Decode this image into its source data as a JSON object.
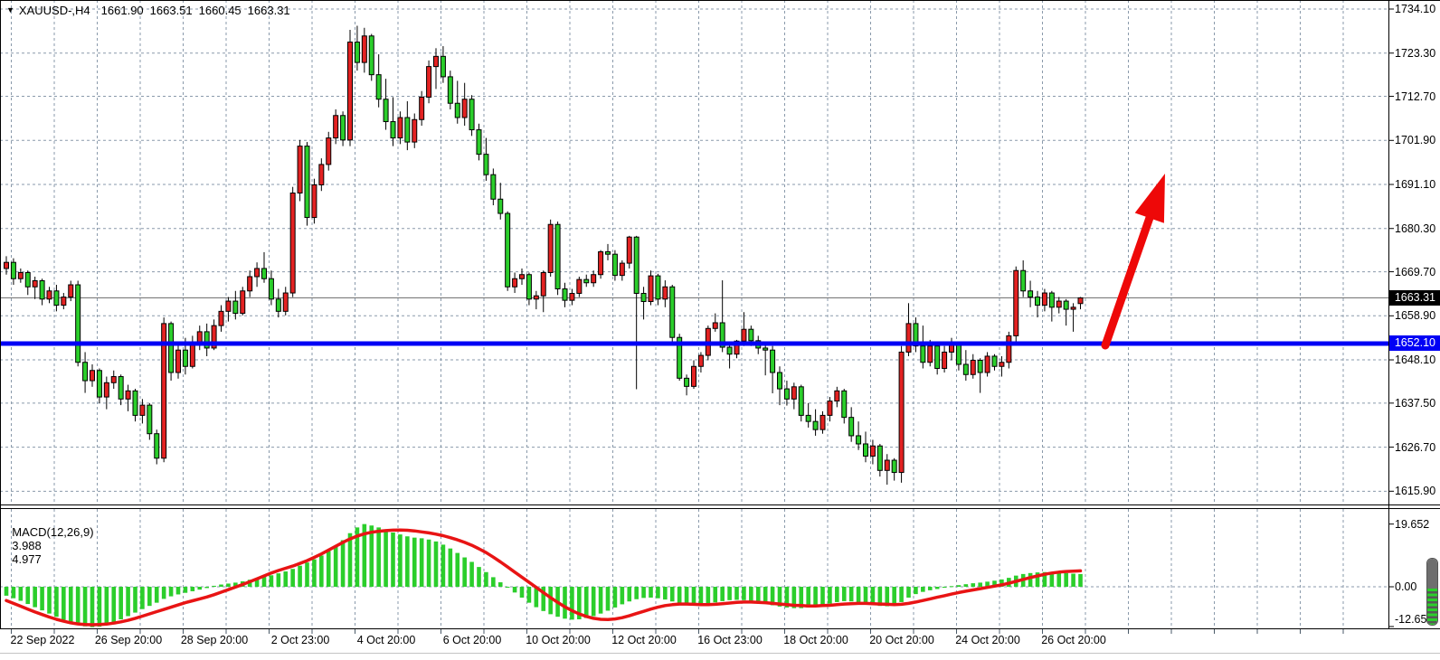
{
  "header": {
    "dropdown_icon": "▼",
    "symbol_timeframe": "XAUUSD-,H4",
    "open": "1661.90",
    "high": "1663.51",
    "low": "1660.45",
    "close": "1663.31"
  },
  "macd_panel": {
    "label": "MACD(12,26,9)",
    "macd_value": "3.988",
    "signal_value": "4.977"
  },
  "price_axis": {
    "tick_labels": [
      "1734.10",
      "1723.30",
      "1712.70",
      "1701.90",
      "1691.10",
      "1680.30",
      "1669.70",
      "1658.90",
      "1648.10",
      "1637.50",
      "1626.70",
      "1615.90"
    ],
    "tick_values": [
      1734.1,
      1723.3,
      1712.7,
      1701.9,
      1691.1,
      1680.3,
      1669.7,
      1658.9,
      1648.1,
      1637.5,
      1626.7,
      1615.9
    ],
    "current_price_tag": "1663.31",
    "level_price_tag": "1652.10"
  },
  "macd_axis": {
    "tick_labels": [
      "19.652",
      "0.00",
      "-12.653"
    ],
    "tick_values": [
      19.652,
      0.0,
      -12.653
    ]
  },
  "time_axis": {
    "labels": [
      "22 Sep 2022",
      "26 Sep 20:00",
      "28 Sep 20:00",
      "2 Oct 23:00",
      "4 Oct 20:00",
      "6 Oct 20:00",
      "10 Oct 20:00",
      "12 Oct 20:00",
      "16 Oct 23:00",
      "18 Oct 20:00",
      "20 Oct 20:00",
      "24 Oct 20:00",
      "26 Oct 20:00"
    ]
  },
  "colors": {
    "background": "#ffffff",
    "grid": "#8a9aab",
    "bull_body": "#e32222",
    "bear_body": "#2bce2b",
    "wick": "#000000",
    "border": "#000000",
    "support_line": "#0000f5",
    "current_price_line": "#6a6a6a",
    "macd_histogram": "#2bce2b",
    "macd_signal": "#e81414",
    "arrow": "#ee0808",
    "tag_current_bg": "#000000",
    "tag_level_bg": "#0000f5",
    "tag_text": "#ffffff"
  },
  "chart_data": {
    "type": "candlestick",
    "symbol": "XAUUSD-",
    "timeframe": "H4",
    "title": "XAUUSD-,H4",
    "last_ohlc": {
      "open": 1661.9,
      "high": 1663.51,
      "low": 1660.45,
      "close": 1663.31
    },
    "ylim": [
      1615.9,
      1734.1
    ],
    "y_ticks": [
      1734.1,
      1723.3,
      1712.7,
      1701.9,
      1691.1,
      1680.3,
      1669.7,
      1658.9,
      1648.1,
      1637.5,
      1626.7,
      1615.9
    ],
    "x_tick_labels": [
      "22 Sep 2022",
      "26 Sep 20:00",
      "28 Sep 20:00",
      "2 Oct 23:00",
      "4 Oct 20:00",
      "6 Oct 20:00",
      "10 Oct 20:00",
      "12 Oct 20:00",
      "16 Oct 23:00",
      "18 Oct 20:00",
      "20 Oct 20:00",
      "24 Oct 20:00",
      "26 Oct 20:00"
    ],
    "grid": true,
    "note_bull_bear_colors": "bullish candles are red, bearish candles are lime in this template",
    "support_line_price": 1652.1,
    "current_price": 1663.31,
    "annotation_arrow": {
      "from_price": 1652.1,
      "to_price": 1694.0,
      "meaning": "projected breakout up from 1652.10 support"
    },
    "candles": [
      [
        1670.5,
        1673.5,
        1669.0,
        1672.0
      ],
      [
        1672.0,
        1673.0,
        1666.5,
        1668.0
      ],
      [
        1668.0,
        1670.5,
        1667.0,
        1669.5
      ],
      [
        1669.5,
        1670.0,
        1664.0,
        1666.0
      ],
      [
        1666.0,
        1668.5,
        1663.0,
        1667.5
      ],
      [
        1667.5,
        1668.0,
        1661.5,
        1663.0
      ],
      [
        1663.0,
        1666.0,
        1662.0,
        1665.0
      ],
      [
        1665.0,
        1666.5,
        1660.0,
        1661.5
      ],
      [
        1661.5,
        1664.5,
        1660.5,
        1663.5
      ],
      [
        1663.5,
        1667.5,
        1662.5,
        1666.5
      ],
      [
        1666.5,
        1667.5,
        1646.5,
        1647.5
      ],
      [
        1647.5,
        1650.0,
        1640.0,
        1643.0
      ],
      [
        1643.0,
        1647.0,
        1641.5,
        1645.5
      ],
      [
        1645.5,
        1646.0,
        1637.5,
        1639.0
      ],
      [
        1639.0,
        1644.0,
        1636.0,
        1642.5
      ],
      [
        1642.5,
        1645.5,
        1641.0,
        1644.0
      ],
      [
        1644.0,
        1644.5,
        1637.0,
        1638.5
      ],
      [
        1638.5,
        1642.0,
        1635.5,
        1640.5
      ],
      [
        1640.5,
        1641.0,
        1633.0,
        1634.5
      ],
      [
        1634.5,
        1638.5,
        1632.5,
        1637.0
      ],
      [
        1637.0,
        1637.5,
        1628.5,
        1630.0
      ],
      [
        1630.0,
        1631.0,
        1622.5,
        1624.0
      ],
      [
        1624.0,
        1658.5,
        1623.0,
        1657.0
      ],
      [
        1657.0,
        1657.5,
        1643.0,
        1645.0
      ],
      [
        1645.0,
        1652.0,
        1643.5,
        1650.5
      ],
      [
        1650.5,
        1653.5,
        1644.5,
        1646.5
      ],
      [
        1646.5,
        1654.0,
        1646.0,
        1652.5
      ],
      [
        1652.5,
        1656.5,
        1650.5,
        1655.0
      ],
      [
        1655.0,
        1657.0,
        1649.0,
        1651.0
      ],
      [
        1651.0,
        1658.0,
        1650.5,
        1656.5
      ],
      [
        1656.5,
        1661.5,
        1655.0,
        1660.0
      ],
      [
        1660.0,
        1663.5,
        1657.5,
        1662.5
      ],
      [
        1662.5,
        1665.0,
        1658.0,
        1659.5
      ],
      [
        1659.5,
        1666.0,
        1659.0,
        1665.0
      ],
      [
        1665.0,
        1670.0,
        1663.5,
        1668.5
      ],
      [
        1668.5,
        1672.0,
        1666.0,
        1670.5
      ],
      [
        1670.5,
        1674.5,
        1667.0,
        1668.0
      ],
      [
        1668.0,
        1670.0,
        1661.5,
        1663.0
      ],
      [
        1663.0,
        1665.5,
        1658.5,
        1660.0
      ],
      [
        1660.0,
        1666.0,
        1659.0,
        1664.5
      ],
      [
        1664.5,
        1690.5,
        1663.5,
        1689.0
      ],
      [
        1689.0,
        1702.0,
        1687.0,
        1700.5
      ],
      [
        1700.5,
        1701.5,
        1681.0,
        1683.0
      ],
      [
        1683.0,
        1692.5,
        1681.5,
        1691.0
      ],
      [
        1691.0,
        1697.5,
        1689.5,
        1696.0
      ],
      [
        1696.0,
        1704.0,
        1694.5,
        1702.5
      ],
      [
        1702.5,
        1709.5,
        1701.0,
        1708.0
      ],
      [
        1708.0,
        1709.0,
        1700.5,
        1702.0
      ],
      [
        1702.0,
        1729.0,
        1700.5,
        1726.0
      ],
      [
        1726.0,
        1730.0,
        1719.0,
        1721.0
      ],
      [
        1721.0,
        1729.5,
        1718.5,
        1727.5
      ],
      [
        1727.5,
        1728.0,
        1716.5,
        1718.0
      ],
      [
        1718.0,
        1723.0,
        1710.0,
        1712.0
      ],
      [
        1712.0,
        1717.0,
        1704.5,
        1706.5
      ],
      [
        1706.5,
        1712.5,
        1700.5,
        1702.5
      ],
      [
        1702.5,
        1709.0,
        1701.0,
        1707.5
      ],
      [
        1707.5,
        1711.5,
        1699.5,
        1701.5
      ],
      [
        1701.5,
        1708.5,
        1700.0,
        1707.0
      ],
      [
        1707.0,
        1714.0,
        1705.5,
        1712.5
      ],
      [
        1712.5,
        1721.5,
        1711.0,
        1720.0
      ],
      [
        1720.0,
        1724.5,
        1714.5,
        1722.5
      ],
      [
        1722.5,
        1725.0,
        1716.0,
        1717.5
      ],
      [
        1717.5,
        1719.0,
        1709.5,
        1711.0
      ],
      [
        1711.0,
        1716.5,
        1706.0,
        1707.5
      ],
      [
        1707.5,
        1716.0,
        1705.5,
        1712.0
      ],
      [
        1712.0,
        1713.0,
        1703.0,
        1704.5
      ],
      [
        1704.5,
        1706.0,
        1697.0,
        1698.5
      ],
      [
        1698.5,
        1702.5,
        1692.0,
        1693.5
      ],
      [
        1693.5,
        1695.0,
        1686.0,
        1687.5
      ],
      [
        1687.5,
        1691.5,
        1682.5,
        1684.0
      ],
      [
        1684.0,
        1684.5,
        1665.0,
        1666.0
      ],
      [
        1666.0,
        1669.5,
        1664.5,
        1668.0
      ],
      [
        1668.0,
        1670.5,
        1666.5,
        1669.0
      ],
      [
        1669.0,
        1669.5,
        1661.5,
        1663.0
      ],
      [
        1663.0,
        1665.0,
        1660.5,
        1663.8
      ],
      [
        1663.8,
        1670.0,
        1659.8,
        1669.5
      ],
      [
        1669.5,
        1682.5,
        1668.5,
        1681.3
      ],
      [
        1681.3,
        1682.0,
        1664.0,
        1665.5
      ],
      [
        1665.5,
        1667.0,
        1661.0,
        1662.7
      ],
      [
        1662.7,
        1665.5,
        1661.5,
        1664.4
      ],
      [
        1664.4,
        1668.5,
        1663.5,
        1667.8
      ],
      [
        1667.8,
        1669.0,
        1666.0,
        1667.0
      ],
      [
        1667.0,
        1670.0,
        1666.0,
        1669.0
      ],
      [
        1669.0,
        1675.0,
        1668.0,
        1674.6
      ],
      [
        1674.6,
        1676.5,
        1672.5,
        1674.0
      ],
      [
        1674.0,
        1675.0,
        1667.5,
        1668.8
      ],
      [
        1668.8,
        1672.5,
        1667.5,
        1671.8
      ],
      [
        1671.8,
        1678.5,
        1670.5,
        1678.2
      ],
      [
        1678.2,
        1678.5,
        1640.9,
        1664.4
      ],
      [
        1664.4,
        1666.0,
        1658.0,
        1662.4
      ],
      [
        1662.4,
        1670.0,
        1661.5,
        1668.7
      ],
      [
        1668.7,
        1669.2,
        1661.5,
        1663.0
      ],
      [
        1663.0,
        1667.6,
        1661.0,
        1666.0
      ],
      [
        1666.0,
        1666.5,
        1652.5,
        1653.6
      ],
      [
        1653.6,
        1654.5,
        1643.0,
        1643.6
      ],
      [
        1643.6,
        1644.5,
        1639.4,
        1641.6
      ],
      [
        1641.6,
        1648.0,
        1641.0,
        1646.5
      ],
      [
        1646.5,
        1650.0,
        1645.0,
        1649.2
      ],
      [
        1649.2,
        1656.5,
        1648.0,
        1655.8
      ],
      [
        1655.8,
        1659.5,
        1655.0,
        1657.2
      ],
      [
        1657.2,
        1667.6,
        1650.0,
        1651.2
      ],
      [
        1651.2,
        1652.5,
        1646.0,
        1649.5
      ],
      [
        1649.5,
        1653.0,
        1648.5,
        1652.7
      ],
      [
        1652.7,
        1659.8,
        1651.5,
        1655.6
      ],
      [
        1655.6,
        1656.5,
        1651.5,
        1652.8
      ],
      [
        1652.8,
        1654.0,
        1649.5,
        1651.0
      ],
      [
        1651.0,
        1652.0,
        1644.3,
        1650.5
      ],
      [
        1650.5,
        1651.5,
        1639.9,
        1645.0
      ],
      [
        1645.0,
        1646.5,
        1637.0,
        1641.0
      ],
      [
        1641.0,
        1643.0,
        1636.9,
        1638.5
      ],
      [
        1638.5,
        1642.5,
        1636.0,
        1641.5
      ],
      [
        1641.5,
        1642.0,
        1633.0,
        1634.5
      ],
      [
        1634.5,
        1637.5,
        1631.5,
        1633.0
      ],
      [
        1633.0,
        1636.0,
        1629.5,
        1631.0
      ],
      [
        1631.0,
        1635.5,
        1630.0,
        1634.5
      ],
      [
        1634.5,
        1639.0,
        1633.0,
        1638.0
      ],
      [
        1638.0,
        1641.5,
        1636.5,
        1640.5
      ],
      [
        1640.5,
        1641.0,
        1632.5,
        1634.0
      ],
      [
        1634.0,
        1636.5,
        1628.0,
        1629.5
      ],
      [
        1629.5,
        1633.0,
        1626.0,
        1627.5
      ],
      [
        1627.5,
        1630.5,
        1623.0,
        1624.5
      ],
      [
        1624.5,
        1628.5,
        1622.5,
        1627.0
      ],
      [
        1627.0,
        1627.5,
        1619.5,
        1621.0
      ],
      [
        1621.0,
        1625.0,
        1617.5,
        1623.5
      ],
      [
        1623.5,
        1624.0,
        1618.5,
        1620.5
      ],
      [
        1620.5,
        1651.5,
        1618.0,
        1650.0
      ],
      [
        1650.0,
        1662.0,
        1649.0,
        1657.0
      ],
      [
        1657.0,
        1658.5,
        1650.0,
        1651.5
      ],
      [
        1651.5,
        1656.5,
        1646.0,
        1647.5
      ],
      [
        1647.5,
        1653.0,
        1646.5,
        1651.5
      ],
      [
        1651.5,
        1652.0,
        1644.5,
        1646.0
      ],
      [
        1646.0,
        1651.5,
        1645.0,
        1650.0
      ],
      [
        1650.0,
        1653.5,
        1648.0,
        1652.0
      ],
      [
        1652.0,
        1652.5,
        1645.5,
        1647.0
      ],
      [
        1647.0,
        1650.5,
        1643.0,
        1644.5
      ],
      [
        1644.5,
        1649.5,
        1643.5,
        1648.0
      ],
      [
        1648.0,
        1648.5,
        1640.0,
        1645.0
      ],
      [
        1645.0,
        1650.0,
        1644.0,
        1649.0
      ],
      [
        1649.0,
        1649.5,
        1645.5,
        1646.5
      ],
      [
        1646.5,
        1649.0,
        1644.0,
        1647.5
      ],
      [
        1647.5,
        1655.0,
        1646.0,
        1654.0
      ],
      [
        1654.0,
        1671.0,
        1652.5,
        1670.0
      ],
      [
        1670.0,
        1672.5,
        1663.5,
        1665.0
      ],
      [
        1665.0,
        1667.5,
        1661.0,
        1663.5
      ],
      [
        1663.5,
        1665.0,
        1658.5,
        1661.5
      ],
      [
        1661.5,
        1665.5,
        1660.0,
        1664.5
      ],
      [
        1664.5,
        1665.0,
        1657.5,
        1661.0
      ],
      [
        1661.0,
        1663.5,
        1659.5,
        1662.5
      ],
      [
        1662.5,
        1663.0,
        1656.5,
        1660.5
      ],
      [
        1660.5,
        1662.0,
        1655.0,
        1661.0
      ],
      [
        1661.9,
        1663.5,
        1660.5,
        1663.3
      ]
    ],
    "indicator": {
      "name": "MACD",
      "params": [
        12,
        26,
        9
      ],
      "current_macd": 3.988,
      "current_signal": 4.977,
      "scale_max": 19.652,
      "scale_min": -12.653,
      "histogram": [
        -2.8,
        -3.6,
        -4.4,
        -5.4,
        -6.4,
        -7.4,
        -8.4,
        -9.4,
        -10.4,
        -11.2,
        -11.9,
        -12.4,
        -12.65,
        -12.5,
        -12.0,
        -11.2,
        -10.2,
        -9.2,
        -8.1,
        -7.0,
        -6.0,
        -5.0,
        -3.8,
        -3.0,
        -2.4,
        -1.9,
        -1.4,
        -0.9,
        -0.4,
        0.3,
        0.7,
        1.0,
        1.3,
        1.7,
        2.2,
        2.7,
        3.1,
        3.6,
        4.2,
        4.8,
        5.6,
        6.6,
        7.6,
        8.6,
        9.8,
        11.2,
        12.8,
        14.6,
        16.8,
        18.6,
        19.65,
        19.2,
        18.6,
        17.8,
        17.0,
        16.4,
        15.8,
        15.4,
        15.2,
        14.8,
        14.2,
        13.2,
        12.0,
        10.6,
        9.2,
        7.8,
        6.2,
        4.6,
        3.0,
        1.4,
        -0.2,
        -1.8,
        -3.4,
        -5.0,
        -6.4,
        -7.6,
        -8.6,
        -9.4,
        -10.0,
        -10.3,
        -10.2,
        -9.8,
        -9.2,
        -8.4,
        -7.5,
        -6.5,
        -5.5,
        -4.6,
        -3.9,
        -3.5,
        -3.4,
        -3.6,
        -4.0,
        -4.6,
        -5.1,
        -5.5,
        -5.7,
        -5.6,
        -5.3,
        -4.9,
        -4.5,
        -4.2,
        -4.1,
        -4.2,
        -4.5,
        -4.9,
        -5.4,
        -5.8,
        -6.2,
        -6.5,
        -6.7,
        -6.7,
        -6.5,
        -6.2,
        -5.8,
        -5.3,
        -4.8,
        -4.5,
        -4.6,
        -4.9,
        -5.3,
        -5.7,
        -6.0,
        -6.1,
        -5.9,
        -4.8,
        -3.4,
        -2.3,
        -1.6,
        -1.1,
        -0.7,
        -0.3,
        0.2,
        0.5,
        0.8,
        1.1,
        1.3,
        1.6,
        1.9,
        2.3,
        2.8,
        3.5,
        4.0,
        4.3,
        4.5,
        4.6,
        4.6,
        4.5,
        4.3,
        4.1,
        3.988
      ],
      "signal_line": [
        -4.3,
        -5.2,
        -6.1,
        -7.0,
        -7.9,
        -8.7,
        -9.5,
        -10.2,
        -10.8,
        -11.3,
        -11.65,
        -11.85,
        -11.9,
        -11.85,
        -11.7,
        -11.4,
        -11.0,
        -10.5,
        -9.9,
        -9.2,
        -8.5,
        -7.8,
        -7.1,
        -6.4,
        -5.7,
        -5.0,
        -4.4,
        -3.8,
        -3.2,
        -2.5,
        -1.7,
        -0.9,
        -0.1,
        0.7,
        1.6,
        2.5,
        3.4,
        4.3,
        5.1,
        5.8,
        6.5,
        7.3,
        8.2,
        9.2,
        10.3,
        11.5,
        12.7,
        13.9,
        15.0,
        15.9,
        16.6,
        17.1,
        17.4,
        17.6,
        17.75,
        17.8,
        17.7,
        17.5,
        17.2,
        16.9,
        16.5,
        16.0,
        15.4,
        14.7,
        13.9,
        13.0,
        11.9,
        10.7,
        9.3,
        7.8,
        6.2,
        4.6,
        3.0,
        1.4,
        -0.2,
        -1.8,
        -3.4,
        -4.9,
        -6.3,
        -7.5,
        -8.5,
        -9.3,
        -9.9,
        -10.2,
        -10.3,
        -10.1,
        -9.7,
        -9.1,
        -8.4,
        -7.7,
        -7.0,
        -6.4,
        -5.9,
        -5.6,
        -5.4,
        -5.4,
        -5.5,
        -5.6,
        -5.6,
        -5.5,
        -5.3,
        -5.1,
        -4.9,
        -4.8,
        -4.8,
        -4.9,
        -5.0,
        -5.2,
        -5.4,
        -5.6,
        -5.8,
        -5.9,
        -6.0,
        -6.0,
        -5.9,
        -5.8,
        -5.6,
        -5.4,
        -5.3,
        -5.2,
        -5.2,
        -5.3,
        -5.4,
        -5.5,
        -5.6,
        -5.5,
        -5.2,
        -4.8,
        -4.3,
        -3.8,
        -3.3,
        -2.8,
        -2.3,
        -1.8,
        -1.4,
        -1.0,
        -0.6,
        -0.2,
        0.2,
        0.6,
        1.1,
        1.7,
        2.3,
        2.9,
        3.4,
        3.9,
        4.3,
        4.6,
        4.8,
        4.9,
        4.977
      ]
    }
  }
}
